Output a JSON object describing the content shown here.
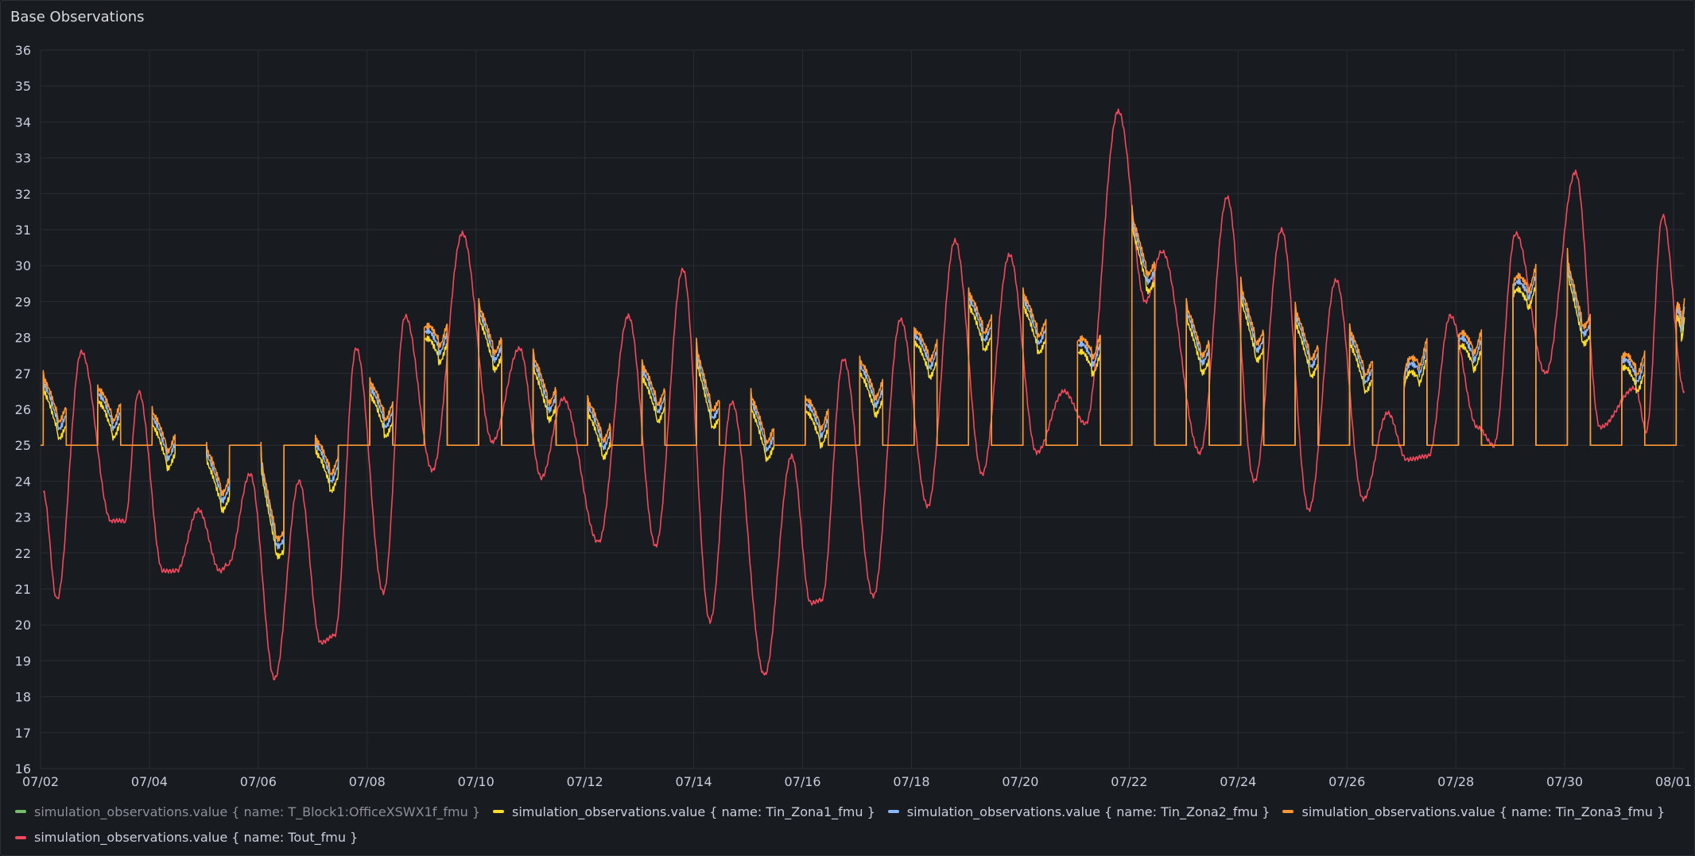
{
  "panel": {
    "title": "Base Observations"
  },
  "chart_data": {
    "type": "line",
    "ylim": [
      16,
      36
    ],
    "y_ticks": [
      "16",
      "17",
      "18",
      "19",
      "20",
      "21",
      "22",
      "23",
      "24",
      "25",
      "26",
      "27",
      "28",
      "29",
      "30",
      "31",
      "32",
      "33",
      "34",
      "35",
      "36"
    ],
    "x_tick_labels": [
      "07/02",
      "07/04",
      "07/06",
      "07/08",
      "07/10",
      "07/12",
      "07/14",
      "07/16",
      "07/18",
      "07/20",
      "07/22",
      "07/24",
      "07/26",
      "07/28",
      "07/30",
      "08/01"
    ],
    "x_tick_days": [
      2,
      4,
      6,
      8,
      10,
      12,
      14,
      16,
      18,
      20,
      22,
      24,
      26,
      28,
      30,
      32
    ],
    "xlim_days": [
      2,
      32.2
    ],
    "grid": true,
    "legend_position": "bottom",
    "tout_extrema": [
      [
        2.05,
        23.7
      ],
      [
        2.3,
        20.7
      ],
      [
        2.75,
        27.6
      ],
      [
        3.3,
        22.9
      ],
      [
        3.55,
        22.9
      ],
      [
        3.8,
        26.5
      ],
      [
        4.25,
        21.5
      ],
      [
        4.5,
        21.5
      ],
      [
        4.9,
        23.2
      ],
      [
        5.3,
        21.5
      ],
      [
        5.45,
        21.7
      ],
      [
        5.85,
        24.2
      ],
      [
        6.3,
        18.5
      ],
      [
        6.75,
        24.0
      ],
      [
        7.15,
        19.5
      ],
      [
        7.4,
        19.7
      ],
      [
        7.8,
        27.7
      ],
      [
        8.3,
        20.9
      ],
      [
        8.7,
        28.6
      ],
      [
        9.2,
        24.3
      ],
      [
        9.75,
        30.9
      ],
      [
        10.3,
        25.1
      ],
      [
        10.8,
        27.7
      ],
      [
        11.2,
        24.1
      ],
      [
        11.6,
        26.3
      ],
      [
        12.25,
        22.3
      ],
      [
        12.8,
        28.6
      ],
      [
        13.3,
        22.2
      ],
      [
        13.8,
        29.9
      ],
      [
        14.3,
        20.1
      ],
      [
        14.7,
        26.2
      ],
      [
        15.3,
        18.6
      ],
      [
        15.8,
        24.7
      ],
      [
        16.15,
        20.6
      ],
      [
        16.35,
        20.7
      ],
      [
        16.75,
        27.4
      ],
      [
        17.3,
        20.8
      ],
      [
        17.8,
        28.5
      ],
      [
        18.3,
        23.3
      ],
      [
        18.8,
        30.7
      ],
      [
        19.3,
        24.2
      ],
      [
        19.8,
        30.3
      ],
      [
        20.3,
        24.8
      ],
      [
        20.8,
        26.5
      ],
      [
        21.2,
        25.6
      ],
      [
        21.8,
        34.3
      ],
      [
        22.3,
        29.0
      ],
      [
        22.6,
        30.4
      ],
      [
        23.3,
        24.8
      ],
      [
        23.8,
        31.9
      ],
      [
        24.3,
        24.0
      ],
      [
        24.8,
        31.0
      ],
      [
        25.3,
        23.2
      ],
      [
        25.8,
        29.6
      ],
      [
        26.3,
        23.5
      ],
      [
        26.75,
        25.9
      ],
      [
        27.1,
        24.6
      ],
      [
        27.5,
        24.7
      ],
      [
        27.9,
        28.6
      ],
      [
        28.4,
        25.5
      ],
      [
        28.7,
        25.0
      ],
      [
        29.1,
        30.9
      ],
      [
        29.65,
        27.0
      ],
      [
        30.2,
        32.6
      ],
      [
        30.65,
        25.5
      ],
      [
        31.3,
        26.6
      ],
      [
        31.5,
        25.4
      ],
      [
        31.8,
        31.4
      ],
      [
        32.2,
        26.5
      ]
    ],
    "series": [
      {
        "label": "simulation_observations.value { name: T_Block1:OfficeXSWX1f_fmu }",
        "color": "#73bf69",
        "hidden": true,
        "values": []
      },
      {
        "label": "simulation_observations.value { name: Tin_Zona1_fmu }",
        "color": "#fade2a"
      },
      {
        "label": "simulation_observations.value { name: Tin_Zona2_fmu }",
        "color": "#8ab8ff"
      },
      {
        "label": "simulation_observations.value { name: Tin_Zona3_fmu }",
        "color": "#ff9830"
      },
      {
        "label": "simulation_observations.value { name: Tout_fmu }",
        "color": "#f2495c"
      }
    ],
    "zone_baseline": 25,
    "occupied_periods": [
      [
        2.05,
        27.0,
        25.7
      ],
      [
        3.05,
        26.6,
        25.8
      ],
      [
        4.05,
        26.0,
        24.9
      ],
      [
        5.05,
        25.0,
        23.7
      ],
      [
        6.05,
        25.0,
        22.2
      ],
      [
        7.05,
        25.2,
        24.3
      ],
      [
        8.05,
        26.8,
        25.8
      ],
      [
        9.05,
        28.2,
        28.0
      ],
      [
        10.05,
        29.0,
        27.6
      ],
      [
        11.05,
        27.6,
        26.2
      ],
      [
        12.05,
        26.3,
        25.2
      ],
      [
        13.05,
        27.3,
        26.2
      ],
      [
        14.05,
        27.9,
        25.9
      ],
      [
        15.05,
        26.5,
        25.1
      ],
      [
        16.05,
        26.3,
        25.6
      ],
      [
        17.05,
        27.4,
        26.4
      ],
      [
        18.05,
        28.2,
        27.5
      ],
      [
        19.05,
        29.3,
        28.2
      ],
      [
        20.05,
        29.3,
        28.1
      ],
      [
        21.05,
        27.8,
        27.7
      ],
      [
        22.05,
        31.6,
        29.7
      ],
      [
        23.05,
        29.0,
        27.5
      ],
      [
        24.05,
        29.6,
        27.8
      ],
      [
        25.05,
        28.9,
        27.4
      ],
      [
        26.05,
        28.3,
        27.0
      ],
      [
        27.05,
        26.8,
        27.6
      ],
      [
        28.05,
        28.0,
        27.8
      ],
      [
        29.05,
        29.4,
        29.6
      ],
      [
        30.05,
        30.4,
        28.2
      ],
      [
        31.05,
        27.4,
        27.2
      ],
      [
        32.05,
        28.7,
        28.7
      ]
    ]
  }
}
